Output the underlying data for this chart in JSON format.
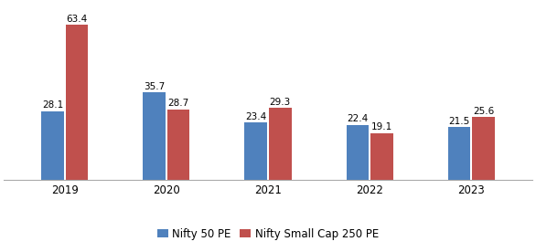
{
  "categories": [
    "2019",
    "2020",
    "2021",
    "2022",
    "2023"
  ],
  "nifty50_values": [
    28.1,
    35.7,
    23.4,
    22.4,
    21.5
  ],
  "smallcap250_values": [
    63.4,
    28.7,
    29.3,
    19.1,
    25.6
  ],
  "nifty50_color": "#4F81BD",
  "smallcap250_color": "#C0504D",
  "bar_width": 0.22,
  "ylim": [
    0,
    72
  ],
  "legend_labels": [
    "Nifty 50 PE",
    "Nifty Small Cap 250 PE"
  ],
  "label_fontsize": 7.5,
  "tick_fontsize": 8.5,
  "legend_fontsize": 8.5
}
